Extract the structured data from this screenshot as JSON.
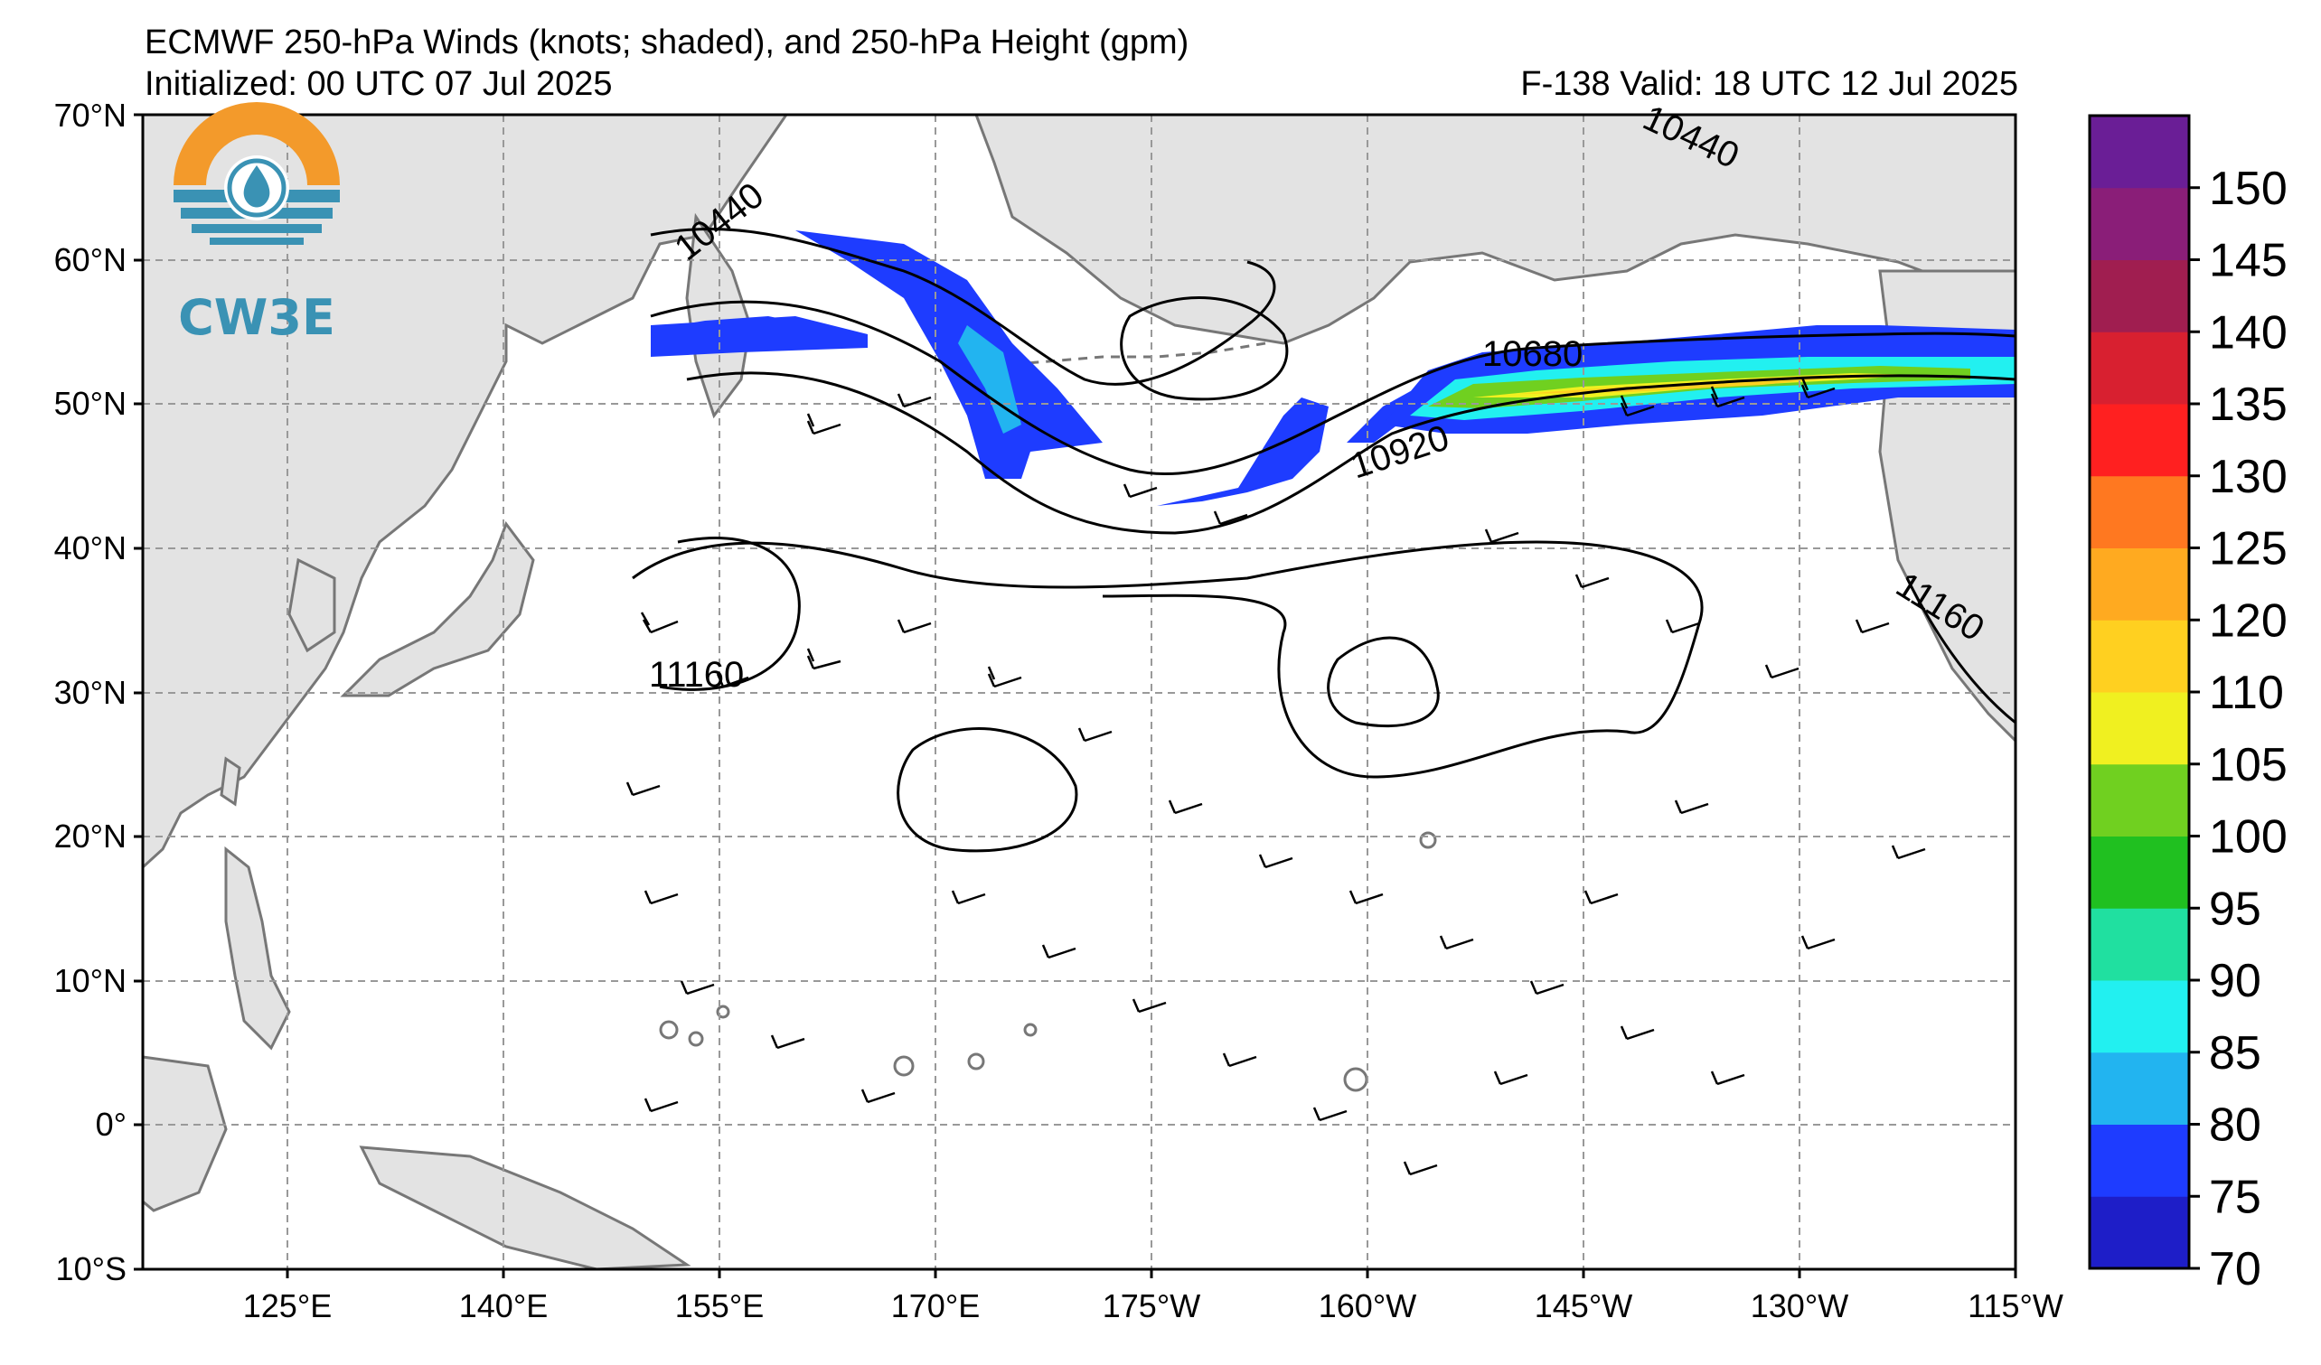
{
  "header": {
    "title": "ECMWF 250-hPa Winds (knots; shaded), and 250-hPa Height (gpm)",
    "initialized": "Initialized: 00 UTC 07 Jul 2025",
    "valid": "F-138  Valid: 18 UTC 12 Jul 2025"
  },
  "logo": {
    "text": "CW3E"
  },
  "axes": {
    "lat_labels": [
      "70°N",
      "60°N",
      "50°N",
      "40°N",
      "30°N",
      "20°N",
      "10°N",
      "0°",
      "10°S"
    ],
    "lon_labels": [
      "125°E",
      "140°E",
      "155°E",
      "170°E",
      "175°W",
      "160°W",
      "145°W",
      "130°W",
      "115°W"
    ]
  },
  "contour_labels": [
    {
      "id": "c10440w",
      "text": "10440"
    },
    {
      "id": "c10440e",
      "text": "10440"
    },
    {
      "id": "c10680",
      "text": "10680"
    },
    {
      "id": "c10920",
      "text": "10920"
    },
    {
      "id": "c11160w",
      "text": "11160"
    },
    {
      "id": "c11160e",
      "text": "11160"
    }
  ],
  "colorbar": {
    "labels": [
      "70",
      "75",
      "80",
      "85",
      "90",
      "95",
      "100",
      "105",
      "110",
      "120",
      "125",
      "130",
      "135",
      "140",
      "145",
      "150"
    ],
    "colors": [
      "#1e1ec8",
      "#1e3cff",
      "#22b4f0",
      "#22f0f0",
      "#20e0a0",
      "#20c020",
      "#70d020",
      "#f0f020",
      "#ffd020",
      "#ffaa20",
      "#ff7820",
      "#ff2020",
      "#d82030",
      "#a01e50",
      "#8a1e78",
      "#6a1e96"
    ]
  },
  "colors": {
    "land": "#e3e3e3",
    "coast": "#777777",
    "ocean": "#ffffff",
    "grid": "#999999"
  }
}
